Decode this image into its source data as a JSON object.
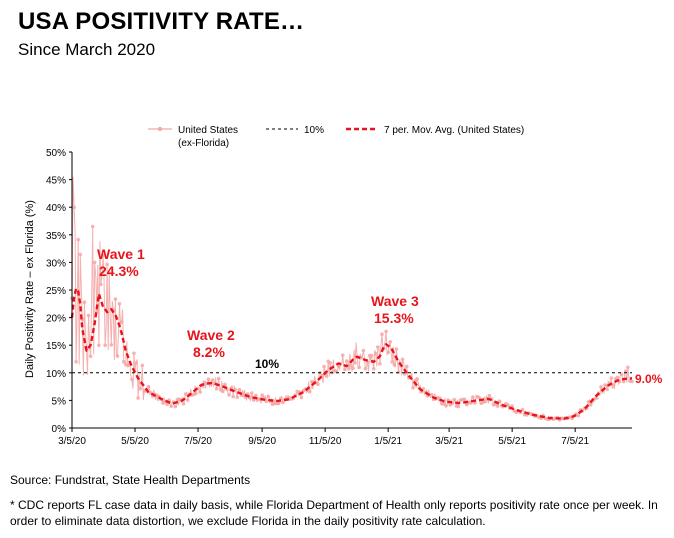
{
  "header": {
    "title": "USA POSITIVITY RATE…",
    "subtitle": "Since March 2020"
  },
  "footer": {
    "source": "Source: Fundstrat, State Health Departments",
    "note": "* CDC reports FL case data in daily basis, while Florida Department of Health only reports positivity rate once per week. In order to eliminate data distortion, we exclude Florida in the daily positivity rate calculation."
  },
  "chart_data": {
    "type": "line",
    "title": "",
    "ylabel": "Daily Positivity Rate – ex Florida (%)",
    "xlabel": "",
    "ylim": [
      0,
      50
    ],
    "y_ticks": [
      "0%",
      "5%",
      "10%",
      "15%",
      "20%",
      "25%",
      "30%",
      "35%",
      "40%",
      "45%",
      "50%"
    ],
    "x_ticks": [
      "3/5/20",
      "5/5/20",
      "7/5/20",
      "9/5/20",
      "11/5/20",
      "1/5/21",
      "3/5/21",
      "5/5/21",
      "7/5/21"
    ],
    "x_tick_dates": [
      "2020-03-05",
      "2020-05-05",
      "2020-07-05",
      "2020-09-05",
      "2020-11-05",
      "2021-01-05",
      "2021-03-05",
      "2021-05-05",
      "2021-07-05"
    ],
    "x_range": [
      "2020-03-05",
      "2021-08-29"
    ],
    "legend": {
      "placement": "top",
      "entries": [
        "United States (ex-Florida)",
        "10%",
        "7 per. Mov. Avg. (United States)"
      ],
      "daily_line1": "United States",
      "daily_line2": "(ex-Florida)",
      "ref": "10%",
      "mavg": "7 per. Mov. Avg. (United States)"
    },
    "colors": {
      "daily": "#f4a7a7",
      "moving_avg": "#e8141b",
      "reference": "#000000",
      "annotation": "#e8141b"
    },
    "reference_line": {
      "value": 10,
      "label": "10%"
    },
    "moving_avg_series": {
      "name": "7 per. Mov. Avg. (United States)",
      "points": [
        [
          "2020-03-05",
          20.0
        ],
        [
          "2020-03-08",
          25.5
        ],
        [
          "2020-03-12",
          24.5
        ],
        [
          "2020-03-15",
          18.0
        ],
        [
          "2020-03-19",
          14.0
        ],
        [
          "2020-03-23",
          15.0
        ],
        [
          "2020-03-27",
          19.0
        ],
        [
          "2020-03-31",
          24.3
        ],
        [
          "2020-04-04",
          22.0
        ],
        [
          "2020-04-08",
          21.0
        ],
        [
          "2020-04-12",
          21.5
        ],
        [
          "2020-04-16",
          20.5
        ],
        [
          "2020-04-21",
          18.0
        ],
        [
          "2020-04-26",
          14.0
        ],
        [
          "2020-05-01",
          11.5
        ],
        [
          "2020-05-08",
          9.0
        ],
        [
          "2020-05-18",
          6.5
        ],
        [
          "2020-05-30",
          5.3
        ],
        [
          "2020-06-10",
          4.4
        ],
        [
          "2020-06-20",
          5.0
        ],
        [
          "2020-06-30",
          6.5
        ],
        [
          "2020-07-08",
          7.8
        ],
        [
          "2020-07-18",
          8.2
        ],
        [
          "2020-07-28",
          7.6
        ],
        [
          "2020-08-10",
          6.6
        ],
        [
          "2020-08-25",
          5.6
        ],
        [
          "2020-09-08",
          5.1
        ],
        [
          "2020-09-20",
          4.9
        ],
        [
          "2020-10-01",
          5.2
        ],
        [
          "2020-10-15",
          6.5
        ],
        [
          "2020-10-28",
          8.5
        ],
        [
          "2020-11-08",
          10.5
        ],
        [
          "2020-11-18",
          11.7
        ],
        [
          "2020-11-26",
          11.2
        ],
        [
          "2020-12-05",
          13.0
        ],
        [
          "2020-12-14",
          12.3
        ],
        [
          "2020-12-22",
          12.0
        ],
        [
          "2020-12-28",
          13.0
        ],
        [
          "2021-01-02",
          15.3
        ],
        [
          "2021-01-08",
          14.5
        ],
        [
          "2021-01-15",
          12.0
        ],
        [
          "2021-01-25",
          9.5
        ],
        [
          "2021-02-05",
          7.0
        ],
        [
          "2021-02-18",
          5.5
        ],
        [
          "2021-03-01",
          4.8
        ],
        [
          "2021-03-15",
          4.5
        ],
        [
          "2021-04-01",
          5.0
        ],
        [
          "2021-04-12",
          5.3
        ],
        [
          "2021-04-25",
          4.2
        ],
        [
          "2021-05-10",
          3.2
        ],
        [
          "2021-05-25",
          2.4
        ],
        [
          "2021-06-10",
          1.8
        ],
        [
          "2021-06-25",
          1.7
        ],
        [
          "2021-07-05",
          2.2
        ],
        [
          "2021-07-15",
          3.6
        ],
        [
          "2021-07-25",
          5.8
        ],
        [
          "2021-08-05",
          7.6
        ],
        [
          "2021-08-15",
          8.6
        ],
        [
          "2021-08-22",
          8.9
        ],
        [
          "2021-08-29",
          9.0
        ]
      ]
    },
    "daily_series": {
      "name": "United States (ex-Florida)",
      "spikes": [
        [
          "2020-03-06",
          45.5
        ],
        [
          "2020-03-07",
          40.0
        ],
        [
          "2020-03-09",
          12.0
        ],
        [
          "2020-03-12",
          11.5
        ],
        [
          "2020-03-16",
          9.5
        ],
        [
          "2020-03-25",
          36.5
        ],
        [
          "2020-03-27",
          30.0
        ],
        [
          "2020-04-02",
          26.0
        ],
        [
          "2020-04-07",
          18.0
        ],
        [
          "2020-04-13",
          23.0
        ],
        [
          "2020-04-20",
          22.5
        ],
        [
          "2020-04-24",
          12.0
        ],
        [
          "2020-12-05",
          15.5
        ],
        [
          "2020-12-30",
          17.0
        ],
        [
          "2021-01-03",
          17.5
        ],
        [
          "2021-08-25",
          11.0
        ]
      ]
    },
    "annotations": [
      {
        "line1": "Wave 1",
        "line2": "24.3%"
      },
      {
        "line1": "Wave 2",
        "line2": "8.2%"
      },
      {
        "line1": "Wave 3",
        "line2": "15.3%"
      },
      {
        "text": "10%"
      },
      {
        "text": "9.0%"
      }
    ]
  }
}
